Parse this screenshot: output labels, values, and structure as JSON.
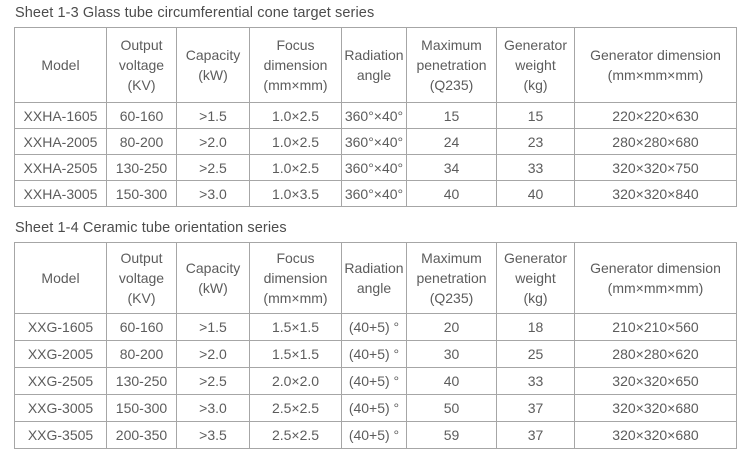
{
  "colors": {
    "background": "#ffffff",
    "table_text": "#5c5c5c",
    "title_text": "#4c4c4c",
    "grid_border": "#a6a6a6"
  },
  "tables": [
    {
      "title": "Sheet 1-3 Glass tube circumferential cone target series",
      "headers": [
        "Model",
        "Output\nvoltage\n(KV)",
        "Capacity\n(kW)",
        "Focus\ndimension\n(mm×mm)",
        "Radiation\nangle",
        "Maximum\npenetration\n(Q235)",
        "Generator\nweight\n(kg)",
        "Generator dimension\n(mm×mm×mm)"
      ],
      "rows": [
        [
          "XXHA-1605",
          "60-160",
          ">1.5",
          "1.0×2.5",
          "360°×40°",
          "15",
          "15",
          "220×220×630"
        ],
        [
          "XXHA-2005",
          "80-200",
          ">2.0",
          "1.0×2.5",
          "360°×40°",
          "24",
          "23",
          "280×280×680"
        ],
        [
          "XXHA-2505",
          "130-250",
          ">2.5",
          "1.0×2.5",
          "360°×40°",
          "34",
          "33",
          "320×320×750"
        ],
        [
          "XXHA-3005",
          "150-300",
          ">3.0",
          "1.0×3.5",
          "360°×40°",
          "40",
          "40",
          "320×320×840"
        ]
      ]
    },
    {
      "title": "Sheet 1-4 Ceramic tube orientation series",
      "headers": [
        "Model",
        "Output\nvoltage\n(KV)",
        "Capacity\n(kW)",
        "Focus\ndimension\n(mm×mm)",
        "Radiation\nangle",
        "Maximum\npenetration\n(Q235)",
        "Generator\nweight\n(kg)",
        "Generator dimension\n(mm×mm×mm)"
      ],
      "rows": [
        [
          "XXG-1605",
          "60-160",
          ">1.5",
          "1.5×1.5",
          "(40+5) °",
          "20",
          "18",
          "210×210×560"
        ],
        [
          "XXG-2005",
          "80-200",
          ">2.0",
          "1.5×1.5",
          "(40+5) °",
          "30",
          "25",
          "280×280×620"
        ],
        [
          "XXG-2505",
          "130-250",
          ">2.5",
          "2.0×2.0",
          "(40+5) °",
          "40",
          "33",
          "320×320×650"
        ],
        [
          "XXG-3005",
          "150-300",
          ">3.0",
          "2.5×2.5",
          "(40+5) °",
          "50",
          "37",
          "320×320×680"
        ],
        [
          "XXG-3505",
          "200-350",
          ">3.5",
          "2.5×2.5",
          "(40+5) °",
          "59",
          "37",
          "320×320×680"
        ]
      ]
    }
  ]
}
